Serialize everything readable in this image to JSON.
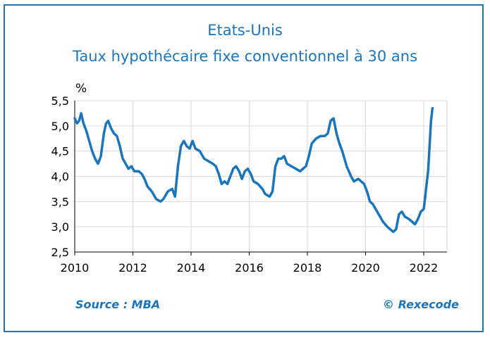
{
  "title": "Etats-Unis",
  "subtitle": "Taux hypothécaire fixe conventionnel à 30 ans",
  "source": "Source : MBA",
  "copyright": "© Rexecode",
  "colors": {
    "accent": "#1b75bb",
    "line": "#1b75bb",
    "grid": "#d9d9d9"
  },
  "chart_data": {
    "type": "line",
    "title": "Taux hypothécaire fixe conventionnel à 30 ans",
    "ylabel": "%",
    "xlabel": "",
    "xlim": [
      2010,
      2022.8
    ],
    "ylim": [
      2.5,
      5.5
    ],
    "xticks": [
      "2010",
      "2012",
      "2014",
      "2016",
      "2018",
      "2020",
      "2022"
    ],
    "yticks": [
      "2,5",
      "3,0",
      "3,5",
      "4,0",
      "4,5",
      "5,0",
      "5,5"
    ],
    "grid": true,
    "series": [
      {
        "points": [
          [
            2010.0,
            5.15
          ],
          [
            2010.08,
            5.05
          ],
          [
            2010.15,
            5.1
          ],
          [
            2010.22,
            5.25
          ],
          [
            2010.3,
            5.05
          ],
          [
            2010.4,
            4.9
          ],
          [
            2010.5,
            4.7
          ],
          [
            2010.6,
            4.5
          ],
          [
            2010.7,
            4.35
          ],
          [
            2010.8,
            4.25
          ],
          [
            2010.9,
            4.4
          ],
          [
            2011.0,
            4.85
          ],
          [
            2011.08,
            5.05
          ],
          [
            2011.15,
            5.1
          ],
          [
            2011.25,
            4.95
          ],
          [
            2011.35,
            4.85
          ],
          [
            2011.45,
            4.8
          ],
          [
            2011.55,
            4.6
          ],
          [
            2011.65,
            4.35
          ],
          [
            2011.75,
            4.25
          ],
          [
            2011.85,
            4.15
          ],
          [
            2011.95,
            4.2
          ],
          [
            2012.05,
            4.1
          ],
          [
            2012.2,
            4.1
          ],
          [
            2012.3,
            4.05
          ],
          [
            2012.4,
            3.95
          ],
          [
            2012.5,
            3.8
          ],
          [
            2012.65,
            3.7
          ],
          [
            2012.8,
            3.55
          ],
          [
            2012.95,
            3.5
          ],
          [
            2013.05,
            3.55
          ],
          [
            2013.2,
            3.7
          ],
          [
            2013.35,
            3.75
          ],
          [
            2013.45,
            3.6
          ],
          [
            2013.55,
            4.2
          ],
          [
            2013.65,
            4.6
          ],
          [
            2013.75,
            4.7
          ],
          [
            2013.85,
            4.6
          ],
          [
            2013.95,
            4.55
          ],
          [
            2014.05,
            4.7
          ],
          [
            2014.15,
            4.55
          ],
          [
            2014.3,
            4.5
          ],
          [
            2014.45,
            4.35
          ],
          [
            2014.6,
            4.3
          ],
          [
            2014.75,
            4.25
          ],
          [
            2014.85,
            4.2
          ],
          [
            2014.95,
            4.05
          ],
          [
            2015.05,
            3.85
          ],
          [
            2015.15,
            3.9
          ],
          [
            2015.25,
            3.85
          ],
          [
            2015.35,
            4.0
          ],
          [
            2015.45,
            4.15
          ],
          [
            2015.55,
            4.2
          ],
          [
            2015.65,
            4.1
          ],
          [
            2015.75,
            3.95
          ],
          [
            2015.85,
            4.1
          ],
          [
            2015.95,
            4.15
          ],
          [
            2016.05,
            4.05
          ],
          [
            2016.15,
            3.9
          ],
          [
            2016.3,
            3.85
          ],
          [
            2016.45,
            3.75
          ],
          [
            2016.55,
            3.65
          ],
          [
            2016.7,
            3.6
          ],
          [
            2016.8,
            3.7
          ],
          [
            2016.9,
            4.2
          ],
          [
            2017.0,
            4.35
          ],
          [
            2017.1,
            4.35
          ],
          [
            2017.2,
            4.4
          ],
          [
            2017.3,
            4.25
          ],
          [
            2017.45,
            4.2
          ],
          [
            2017.6,
            4.15
          ],
          [
            2017.75,
            4.1
          ],
          [
            2017.85,
            4.15
          ],
          [
            2017.95,
            4.2
          ],
          [
            2018.05,
            4.4
          ],
          [
            2018.15,
            4.65
          ],
          [
            2018.3,
            4.75
          ],
          [
            2018.45,
            4.8
          ],
          [
            2018.6,
            4.8
          ],
          [
            2018.7,
            4.85
          ],
          [
            2018.8,
            5.1
          ],
          [
            2018.9,
            5.15
          ],
          [
            2019.0,
            4.85
          ],
          [
            2019.1,
            4.65
          ],
          [
            2019.2,
            4.5
          ],
          [
            2019.35,
            4.2
          ],
          [
            2019.5,
            4.0
          ],
          [
            2019.6,
            3.9
          ],
          [
            2019.75,
            3.95
          ],
          [
            2019.85,
            3.9
          ],
          [
            2019.95,
            3.85
          ],
          [
            2020.05,
            3.7
          ],
          [
            2020.15,
            3.5
          ],
          [
            2020.25,
            3.45
          ],
          [
            2020.35,
            3.35
          ],
          [
            2020.5,
            3.2
          ],
          [
            2020.6,
            3.1
          ],
          [
            2020.75,
            3.0
          ],
          [
            2020.85,
            2.95
          ],
          [
            2020.95,
            2.9
          ],
          [
            2021.05,
            2.95
          ],
          [
            2021.15,
            3.25
          ],
          [
            2021.25,
            3.3
          ],
          [
            2021.35,
            3.2
          ],
          [
            2021.5,
            3.15
          ],
          [
            2021.6,
            3.1
          ],
          [
            2021.7,
            3.05
          ],
          [
            2021.8,
            3.15
          ],
          [
            2021.9,
            3.3
          ],
          [
            2022.0,
            3.35
          ],
          [
            2022.05,
            3.6
          ],
          [
            2022.1,
            3.85
          ],
          [
            2022.15,
            4.1
          ],
          [
            2022.2,
            4.6
          ],
          [
            2022.25,
            5.1
          ],
          [
            2022.3,
            5.35
          ]
        ]
      }
    ]
  }
}
